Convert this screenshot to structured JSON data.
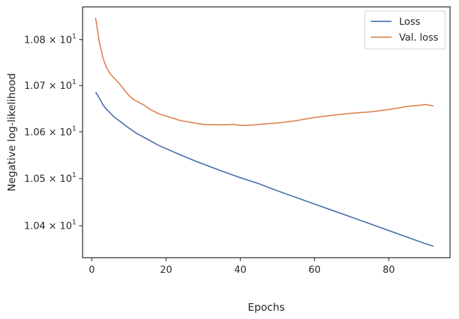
{
  "chart_data": {
    "type": "line",
    "xlabel": "Epochs",
    "ylabel": "Negative log-likelihood",
    "yscale": "log",
    "xlim": [
      -2.5,
      96.5
    ],
    "ylim": [
      10.333,
      10.872
    ],
    "grid": false,
    "legend_position": "top-right",
    "x_ticks": [
      {
        "value": 0,
        "label": "0"
      },
      {
        "value": 20,
        "label": "20"
      },
      {
        "value": 40,
        "label": "40"
      },
      {
        "value": 60,
        "label": "60"
      },
      {
        "value": 80,
        "label": "80"
      }
    ],
    "y_ticks": [
      {
        "value": 10.4,
        "mantissa": "1.04",
        "base": "10",
        "exponent": "1"
      },
      {
        "value": 10.5,
        "mantissa": "1.05",
        "base": "10",
        "exponent": "1"
      },
      {
        "value": 10.6,
        "mantissa": "1.06",
        "base": "10",
        "exponent": "1"
      },
      {
        "value": 10.7,
        "mantissa": "1.07",
        "base": "10",
        "exponent": "1"
      },
      {
        "value": 10.8,
        "mantissa": "1.08",
        "base": "10",
        "exponent": "1"
      }
    ],
    "series": [
      {
        "name": "Loss",
        "color": "#4c72b0",
        "x": [
          1,
          2,
          3,
          4,
          5,
          6,
          7,
          8,
          10,
          12,
          15,
          18,
          20,
          22,
          25,
          28,
          30,
          35,
          40,
          45,
          50,
          55,
          60,
          65,
          70,
          75,
          80,
          85,
          90,
          92
        ],
        "y": [
          10.686,
          10.673,
          10.658,
          10.648,
          10.64,
          10.632,
          10.626,
          10.62,
          10.608,
          10.597,
          10.584,
          10.571,
          10.564,
          10.557,
          10.547,
          10.537,
          10.531,
          10.516,
          10.502,
          10.489,
          10.474,
          10.46,
          10.446,
          10.432,
          10.418,
          10.404,
          10.39,
          10.376,
          10.362,
          10.357
        ]
      },
      {
        "name": "Val. loss",
        "color": "#dd8452",
        "x": [
          1,
          2,
          3,
          4,
          5,
          6,
          7,
          8,
          9,
          10,
          11,
          12,
          14,
          16,
          18,
          20,
          22,
          24,
          27,
          30,
          35,
          38,
          40,
          42,
          45,
          50,
          55,
          60,
          65,
          70,
          75,
          80,
          85,
          88,
          90,
          91,
          92
        ],
        "y": [
          10.848,
          10.795,
          10.76,
          10.738,
          10.725,
          10.716,
          10.708,
          10.698,
          10.688,
          10.678,
          10.671,
          10.666,
          10.658,
          10.647,
          10.639,
          10.634,
          10.629,
          10.624,
          10.62,
          10.616,
          10.615,
          10.616,
          10.614,
          10.614,
          10.616,
          10.619,
          10.624,
          10.631,
          10.636,
          10.64,
          10.643,
          10.648,
          10.655,
          10.657,
          10.659,
          10.657,
          10.656
        ]
      }
    ]
  }
}
